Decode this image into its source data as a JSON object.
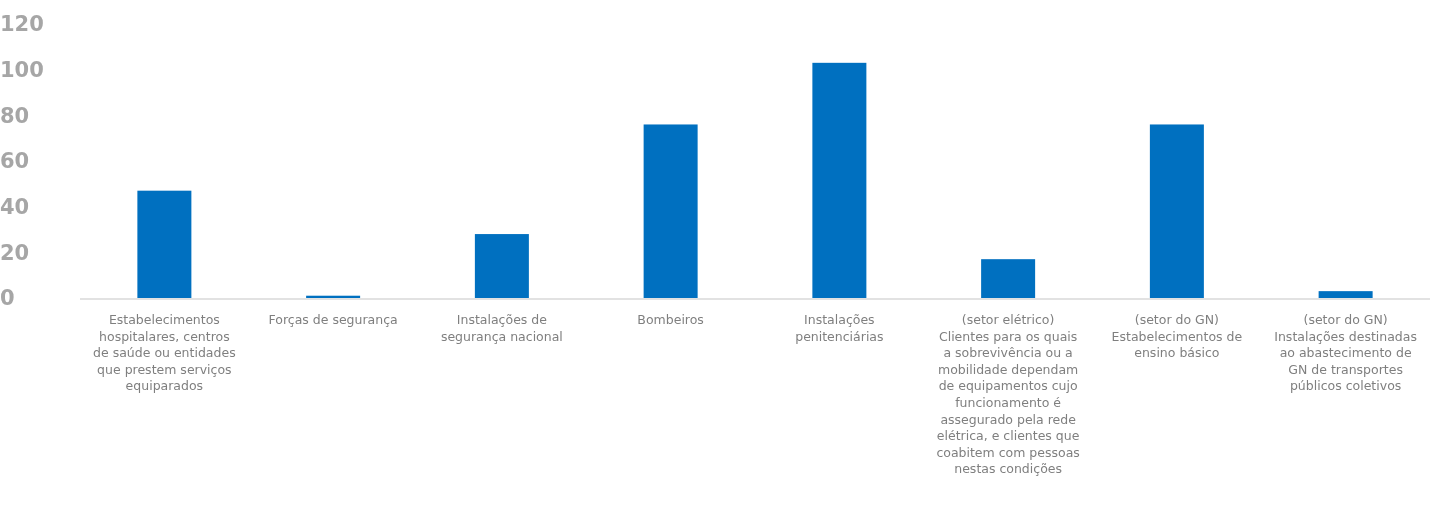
{
  "chart_data": {
    "type": "bar",
    "categories": [
      "Estabelecimentos hospitalares, centros de saúde ou entidades que prestem serviços equiparados",
      "Forças de segurança",
      "Instalações de segurança nacional",
      "Bombeiros",
      "Instalações penitenciárias",
      "(setor elétrico) Clientes para os quais a sobrevivência ou a mobilidade dependam de equipamentos cujo funcionamento é assegurado pela rede elétrica, e clientes que coabitem com pessoas nestas condições",
      "(setor do GN) Estabelecimentos de ensino básico",
      "(setor do GN) Instalações destinadas ao abastecimento de GN de transportes públicos coletivos"
    ],
    "values": [
      47,
      1,
      28,
      76,
      103,
      17,
      76,
      3
    ],
    "color": "#0070c0",
    "ylim": [
      0,
      120
    ],
    "yticks": [
      0,
      20,
      40,
      60,
      80,
      100,
      120
    ],
    "grid": false
  }
}
